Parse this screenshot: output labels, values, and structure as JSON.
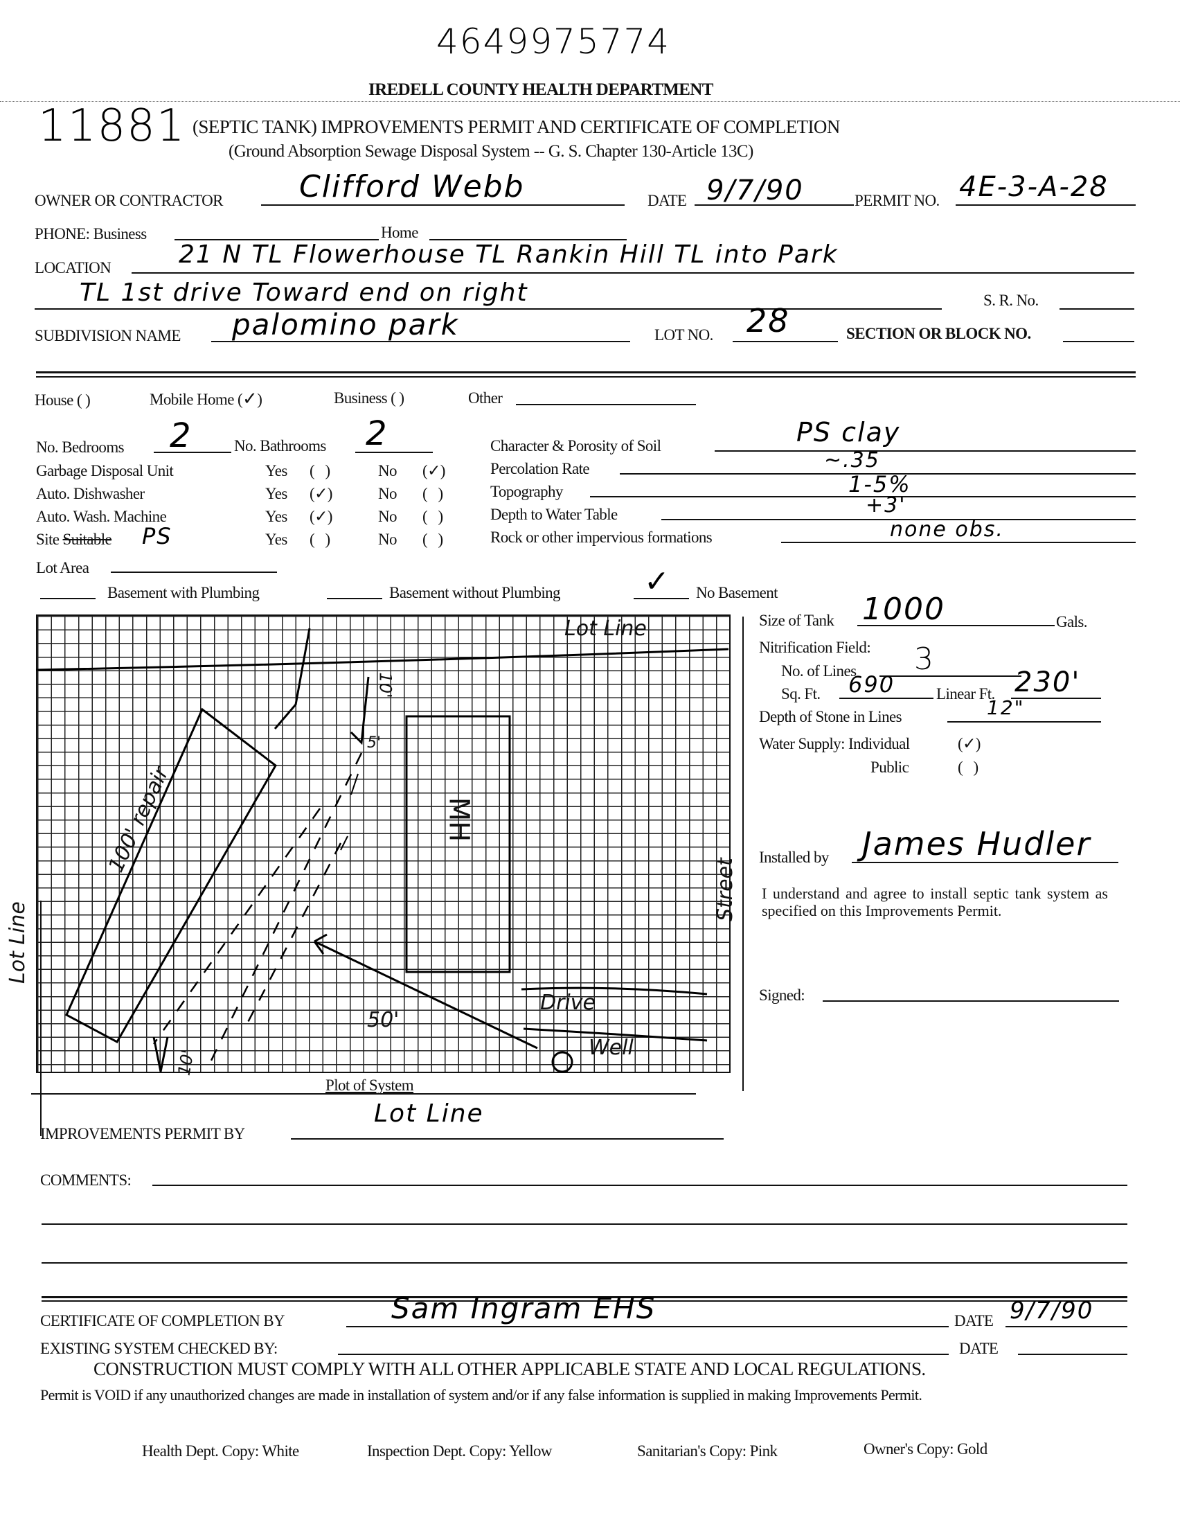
{
  "header": {
    "stamp_number": "4649975774",
    "file_number": "11881",
    "department": "IREDELL COUNTY HEALTH DEPARTMENT",
    "title": "(SEPTIC TANK) IMPROVEMENTS PERMIT AND CERTIFICATE OF COMPLETION",
    "subtitle": "(Ground Absorption Sewage Disposal System -- G. S. Chapter 130-Article 13C)"
  },
  "owner": {
    "label": "OWNER OR CONTRACTOR",
    "value": "Clifford Webb",
    "date_label": "DATE",
    "date_value": "9/7/90",
    "permit_label": "PERMIT NO.",
    "permit_value": "4E-3-A-28"
  },
  "phone": {
    "label": "PHONE:  Business",
    "home_label": "Home"
  },
  "location": {
    "label": "LOCATION",
    "line1": "21 N  TL  Flowerhouse  TL Rankin Hill  TL  into  Park",
    "line2": "TL  1st  drive  Toward  end  on  right",
    "sr_label": "S. R. No."
  },
  "subdivision": {
    "label": "SUBDIVISION NAME",
    "value": "palomino  park",
    "lot_label": "LOT NO.",
    "lot_value": "28",
    "section_label": "SECTION OR BLOCK NO."
  },
  "building_type": {
    "house": "House (  )",
    "mobile_home": "Mobile Home (",
    "mobile_home_close": ")",
    "mobile_home_checked": true,
    "business": "Business (  )",
    "other": "Other"
  },
  "rooms": {
    "bedrooms_label": "No. Bedrooms",
    "bedrooms_value": "2",
    "bathrooms_label": "No. Bathrooms",
    "bathrooms_value": "2"
  },
  "yes_no": {
    "yes": "Yes",
    "no": "No",
    "rows": [
      {
        "label": "Garbage Disposal Unit",
        "answer": "no"
      },
      {
        "label": "Auto. Dishwasher",
        "answer": "yes"
      },
      {
        "label": "Auto. Wash. Machine",
        "answer": "yes"
      },
      {
        "label_prefix": "Site",
        "label_struck": "Suitable",
        "annotation": "PS",
        "answer": ""
      }
    ]
  },
  "soil": [
    {
      "label": "Character & Porosity of Soil",
      "value": "PS clay"
    },
    {
      "label": "Percolation Rate",
      "value": "~.35"
    },
    {
      "label": "Topography",
      "value": "1-5%"
    },
    {
      "label": "Depth to Water Table",
      "value": "+3'"
    },
    {
      "label": "Rock or other impervious formations",
      "value": "none obs."
    }
  ],
  "lot_area": {
    "label": "Lot Area"
  },
  "basement": {
    "with_plumbing": "Basement with Plumbing",
    "without_plumbing": "Basement without Plumbing",
    "none": "No Basement",
    "selected": "none"
  },
  "system": {
    "tank_label": "Size of Tank",
    "tank_value": "1000",
    "tank_unit": "Gals.",
    "nitrification_label": "Nitrification Field:",
    "lines_label": "No. of Lines",
    "lines_value": "3",
    "sqft_label": "Sq. Ft.",
    "sqft_value": "690",
    "linear_label": "Linear Ft.",
    "linear_value": "230'",
    "stone_label": "Depth of Stone in Lines",
    "stone_value": "12\"",
    "water_label": "Water Supply:",
    "individual_label": "Individual",
    "public_label": "Public",
    "water_selected": "individual",
    "installed_label": "Installed by",
    "installed_value": "James Hudler",
    "agreement": "I understand and agree to install septic tank system as specified on this Improvements Permit.",
    "signed_label": "Signed:"
  },
  "plot": {
    "caption": "Plot of System",
    "labels": {
      "lot_line_top": "Lot Line",
      "lot_line_left": "Lot Line",
      "lot_line_bottom": "Lot Line",
      "street": "Street",
      "drive": "Drive",
      "well": "Well",
      "mobile_home": "MH",
      "repair": "100' repair",
      "dist_50": "50'",
      "dist_10_top": "10'",
      "dist_5": "5'",
      "dist_10_bottom": "10'"
    }
  },
  "footer": {
    "improvements_by_label": "IMPROVEMENTS PERMIT BY",
    "comments_label": "COMMENTS:",
    "certificate_label": "CERTIFICATE OF COMPLETION BY",
    "certificate_value": "Sam Ingram EHS",
    "date_label": "DATE",
    "certificate_date": "9/7/90",
    "existing_label": "EXISTING SYSTEM CHECKED BY:",
    "existing_date_label": "DATE",
    "compliance": "CONSTRUCTION MUST COMPLY WITH ALL OTHER APPLICABLE STATE AND LOCAL REGULATIONS.",
    "void_notice": "Permit is VOID if any unauthorized changes are made in installation of system and/or if any false information is supplied in making Improvements Permit.",
    "copies": [
      "Health Dept. Copy: White",
      "Inspection Dept. Copy: Yellow",
      "Sanitarian's Copy: Pink",
      "Owner's Copy: Gold"
    ]
  }
}
